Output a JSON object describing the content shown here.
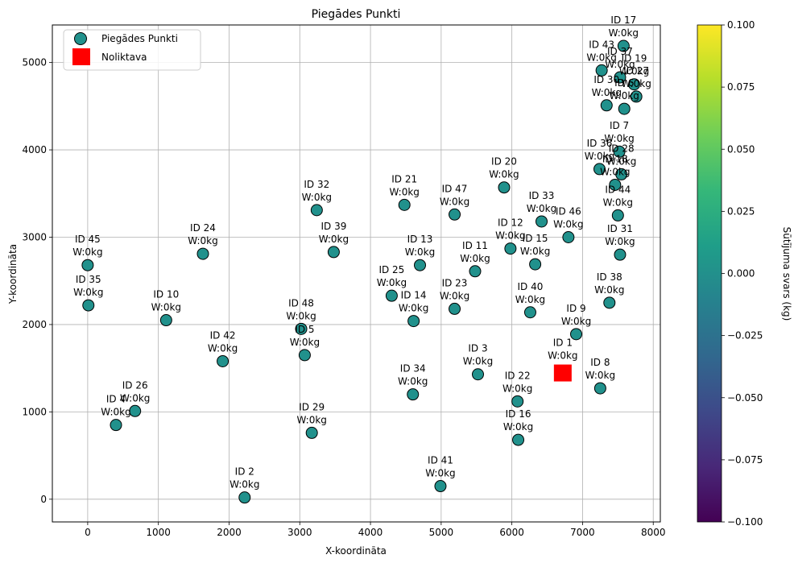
{
  "chart_data": {
    "type": "scatter",
    "title": "Piegādes Punkti",
    "xlabel": "X-koordināta",
    "ylabel": "Y-koordināta",
    "xlim": [
      -500,
      8100
    ],
    "ylim": [
      -260,
      5430
    ],
    "x_ticks": [
      0,
      1000,
      2000,
      3000,
      4000,
      5000,
      6000,
      7000,
      8000
    ],
    "y_ticks": [
      0,
      1000,
      2000,
      3000,
      4000,
      5000
    ],
    "grid": true,
    "legend_position": "top-left",
    "legend": [
      {
        "label": "Piegādes Punkti",
        "marker": "circle",
        "color": "#21918c"
      },
      {
        "label": "Noliktava",
        "marker": "square",
        "color": "#ff0000"
      }
    ],
    "point_color": "#21918c",
    "depot_color": "#ff0000",
    "colorbar": {
      "label": "Sūtījuma svars (kg)",
      "min": -0.1,
      "max": 0.1,
      "ticks": [
        "-0.100",
        "-0.075",
        "-0.050",
        "-0.025",
        "0.000",
        "0.025",
        "0.050",
        "0.075",
        "0.100"
      ],
      "colormap": [
        "#440154",
        "#482878",
        "#3e4989",
        "#31688e",
        "#26828e",
        "#1f9e89",
        "#35b779",
        "#6ece58",
        "#b5de2b",
        "#fde725"
      ]
    },
    "depot": {
      "x": 6720,
      "y": 1450,
      "label": "ID 1",
      "weight_label": "W:0kg"
    },
    "points": [
      {
        "label": "ID 2",
        "x": 2220,
        "y": 20
      },
      {
        "label": "ID 3",
        "x": 5520,
        "y": 1430
      },
      {
        "label": "ID 4",
        "x": 400,
        "y": 850
      },
      {
        "label": "ID 5",
        "x": 3070,
        "y": 1650
      },
      {
        "label": "ID 7",
        "x": 7520,
        "y": 3980
      },
      {
        "label": "ID 8",
        "x": 7250,
        "y": 1270
      },
      {
        "label": "ID 9",
        "x": 6910,
        "y": 1890
      },
      {
        "label": "ID 10",
        "x": 1110,
        "y": 2050
      },
      {
        "label": "ID 11",
        "x": 5480,
        "y": 2610
      },
      {
        "label": "ID 12",
        "x": 5980,
        "y": 2870
      },
      {
        "label": "ID 13",
        "x": 4700,
        "y": 2680
      },
      {
        "label": "ID 14",
        "x": 4610,
        "y": 2040
      },
      {
        "label": "ID 15",
        "x": 6330,
        "y": 2690
      },
      {
        "label": "ID 16",
        "x": 6090,
        "y": 680
      },
      {
        "label": "ID 17",
        "x": 7580,
        "y": 5190
      },
      {
        "label": "ID 18",
        "x": 7460,
        "y": 3600
      },
      {
        "label": "ID 19",
        "x": 7730,
        "y": 4750
      },
      {
        "label": "ID 20",
        "x": 5890,
        "y": 3570
      },
      {
        "label": "ID 21",
        "x": 4480,
        "y": 3370
      },
      {
        "label": "ID 22",
        "x": 6080,
        "y": 1120
      },
      {
        "label": "ID 23",
        "x": 5190,
        "y": 2180
      },
      {
        "label": "ID 24",
        "x": 1630,
        "y": 2810
      },
      {
        "label": "ID 25",
        "x": 4300,
        "y": 2330
      },
      {
        "label": "ID 26",
        "x": 670,
        "y": 1010
      },
      {
        "label": "ID 27",
        "x": 7760,
        "y": 4610
      },
      {
        "label": "ID 28",
        "x": 7550,
        "y": 3720
      },
      {
        "label": "ID 29",
        "x": 3170,
        "y": 760
      },
      {
        "label": "ID 30",
        "x": 7340,
        "y": 4510
      },
      {
        "label": "ID 31",
        "x": 7530,
        "y": 2800
      },
      {
        "label": "ID 32",
        "x": 3240,
        "y": 3310
      },
      {
        "label": "ID 33",
        "x": 6420,
        "y": 3180
      },
      {
        "label": "ID 34",
        "x": 4600,
        "y": 1200
      },
      {
        "label": "ID 35",
        "x": 10,
        "y": 2220
      },
      {
        "label": "ID 36",
        "x": 7240,
        "y": 3780
      },
      {
        "label": "ID 37",
        "x": 7530,
        "y": 4830
      },
      {
        "label": "ID 38",
        "x": 7380,
        "y": 2250
      },
      {
        "label": "ID 39",
        "x": 3480,
        "y": 2830
      },
      {
        "label": "ID 40",
        "x": 6260,
        "y": 2140
      },
      {
        "label": "ID 41",
        "x": 4990,
        "y": 150
      },
      {
        "label": "ID 42",
        "x": 1910,
        "y": 1580
      },
      {
        "label": "ID 43",
        "x": 7270,
        "y": 4910
      },
      {
        "label": "ID 44",
        "x": 7500,
        "y": 3250
      },
      {
        "label": "ID 45",
        "x": 0,
        "y": 2680
      },
      {
        "label": "ID 46",
        "x": 6800,
        "y": 3000
      },
      {
        "label": "ID 47",
        "x": 5190,
        "y": 3260
      },
      {
        "label": "ID 48",
        "x": 3020,
        "y": 1950
      },
      {
        "label": "ID 6",
        "x": 7590,
        "y": 4470
      }
    ],
    "weight_label": "W:0kg"
  }
}
